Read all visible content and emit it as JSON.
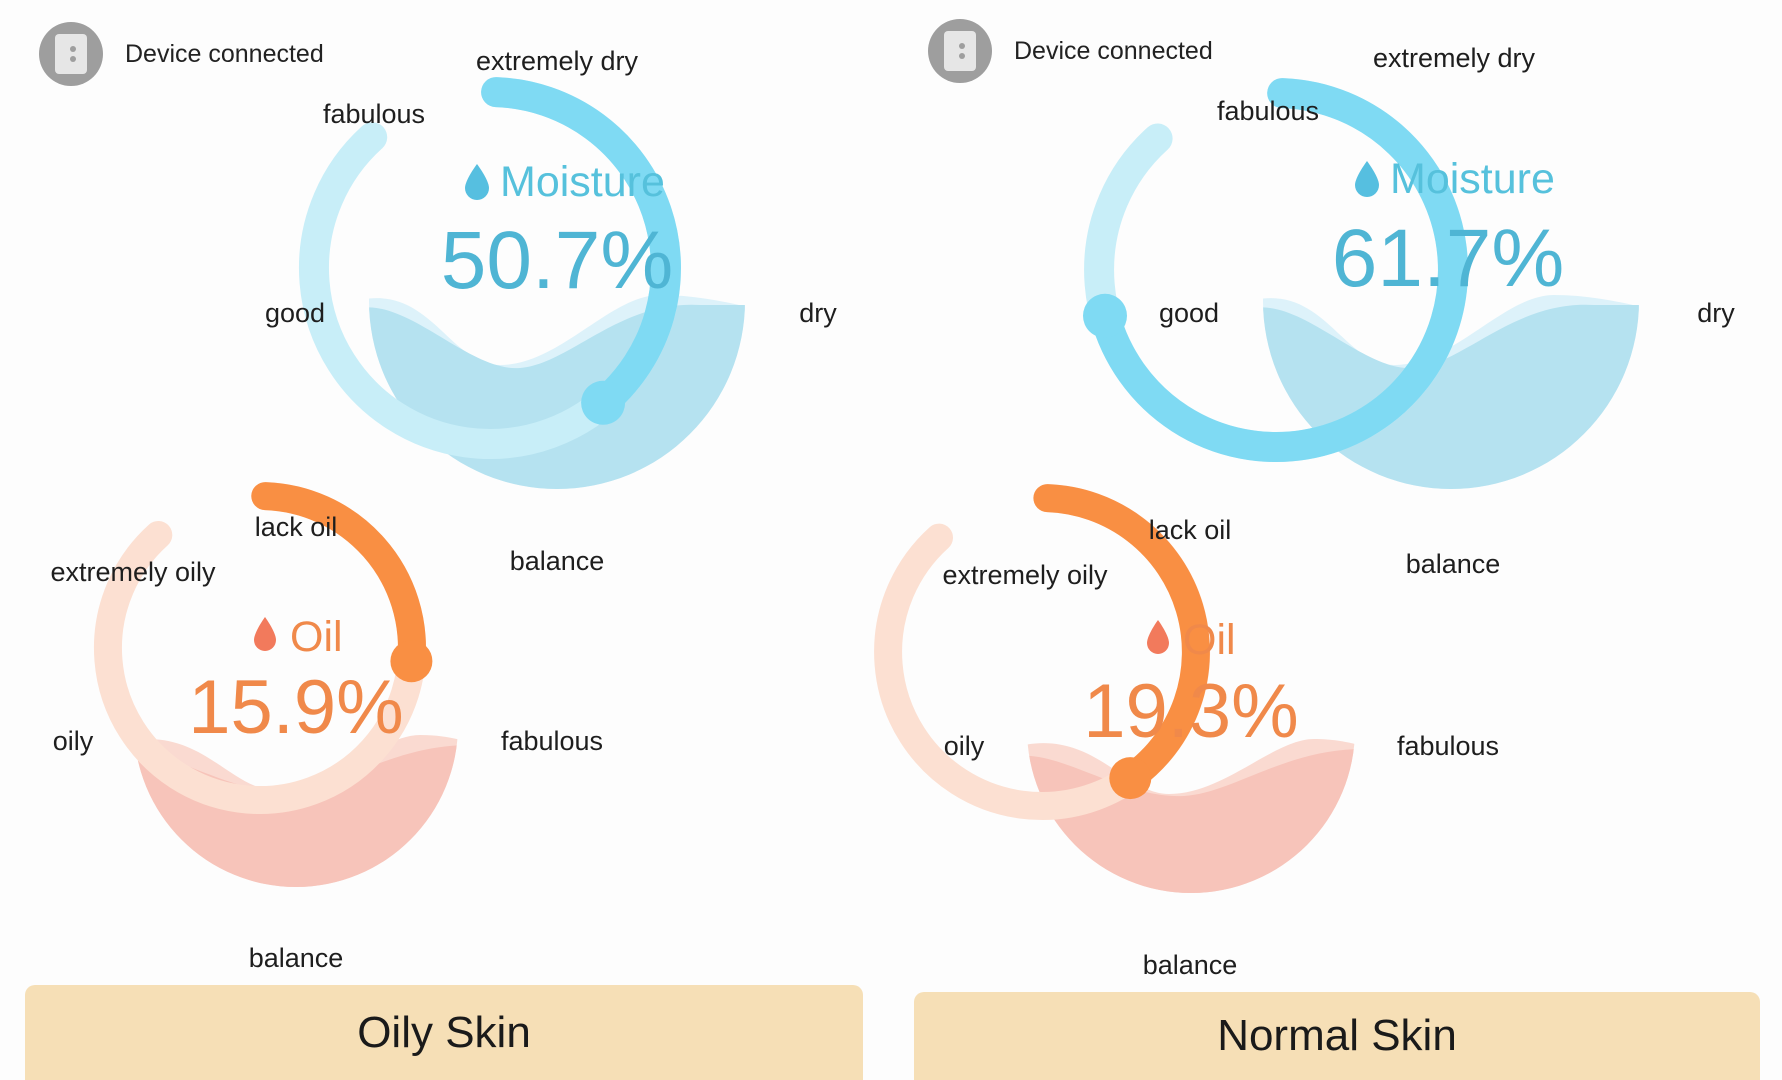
{
  "colors": {
    "moisture_accent": "#7fdaf3",
    "moisture_track": "#c8eef8",
    "moisture_fill": "#b5e2f0",
    "oil_accent": "#f98f43",
    "oil_track": "#fce0d2",
    "oil_fill": "#f7c4ba",
    "result_background": "#f6dfb6"
  },
  "icons": {
    "device": "phone-device-icon",
    "moisture_drop": "water-drop-icon",
    "oil_drop": "oil-drop-icon"
  },
  "panels": [
    {
      "device_status": "Device connected",
      "moisture": {
        "title": "Moisture",
        "value_text": "50.7%",
        "value": 50.7,
        "labels": {
          "top": "extremely dry",
          "top_left": "fabulous",
          "left": "good",
          "right": "dry",
          "bottom": "balance"
        }
      },
      "oil": {
        "title": "Oil",
        "value_text": "15.9%",
        "value": 15.9,
        "labels": {
          "top": "lack oil",
          "top_left": "extremely oily",
          "left": "oily",
          "right": "fabulous",
          "bottom": "balance"
        }
      },
      "result": "Oily Skin"
    },
    {
      "device_status": "Device connected",
      "moisture": {
        "title": "Moisture",
        "value_text": "61.7%",
        "value": 61.7,
        "labels": {
          "top": "extremely dry",
          "top_left": "fabulous",
          "left": "good",
          "right": "dry",
          "bottom": "balance"
        }
      },
      "oil": {
        "title": "Oil",
        "value_text": "19.3%",
        "value": 19.3,
        "labels": {
          "top": "lack oil",
          "top_left": "extremely oily",
          "left": "oily",
          "right": "fabulous",
          "bottom": "balance"
        }
      },
      "result": "Normal Skin"
    }
  ]
}
